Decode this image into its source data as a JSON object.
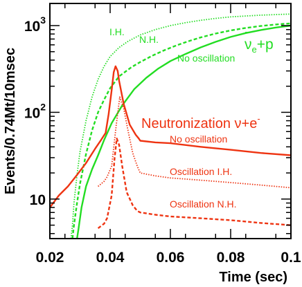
{
  "chart_data": {
    "type": "line",
    "xlabel": "Time (sec)",
    "ylabel": "Events/0.74Mt/10msec",
    "x_scale": "linear",
    "y_scale": "log",
    "xlim": [
      0.02,
      0.1
    ],
    "ylim": [
      3.5,
      1800
    ],
    "x_ticks": [
      0.02,
      0.04,
      0.06,
      0.08,
      0.1
    ],
    "x_tick_labels": [
      "0.02",
      "0.04",
      "0.06",
      "0.08",
      "0.1"
    ],
    "y_ticks": [
      10,
      100,
      1000
    ],
    "y_tick_labels": [
      {
        "base": "10",
        "exp": ""
      },
      {
        "base": "10",
        "exp": "2"
      },
      {
        "base": "10",
        "exp": "3"
      }
    ],
    "grid": false,
    "colors": {
      "antineutrino": "#22dd22",
      "neutronization": "#ee3311"
    },
    "group_labels": [
      {
        "id": "antineutrino",
        "text": "ν̄e+p",
        "base": "ν",
        "bar": "–",
        "sub": "e",
        "tail": "+p",
        "color": "#22dd22"
      },
      {
        "id": "neutronization",
        "text": "Neutronization ν+e⁻",
        "base": "Neutronization ν+e",
        "sup": "-",
        "color": "#ee3311"
      }
    ],
    "series": [
      {
        "id": "nuebar-no-osc",
        "group": "antineutrino",
        "label": "No oscillation",
        "style": "solid",
        "x": [
          0.029,
          0.0295,
          0.0305,
          0.032,
          0.034,
          0.036,
          0.038,
          0.0405,
          0.044,
          0.048,
          0.052,
          0.056,
          0.06,
          0.065,
          0.07,
          0.075,
          0.08,
          0.085,
          0.09,
          0.095,
          0.1
        ],
        "y": [
          3.5,
          4.5,
          8,
          14,
          22,
          32,
          48,
          75,
          120,
          185,
          250,
          320,
          390,
          470,
          560,
          650,
          740,
          820,
          890,
          950,
          1000
        ]
      },
      {
        "id": "nuebar-nh",
        "group": "antineutrino",
        "label": "N.H.",
        "style": "dashed",
        "x": [
          0.0275,
          0.028,
          0.029,
          0.03,
          0.032,
          0.034,
          0.036,
          0.038,
          0.04,
          0.043,
          0.047,
          0.05,
          0.054,
          0.058,
          0.062,
          0.066,
          0.07,
          0.075,
          0.08,
          0.085,
          0.09,
          0.095,
          0.1
        ],
        "y": [
          3.5,
          5,
          9,
          15,
          33,
          62,
          100,
          140,
          190,
          260,
          330,
          380,
          450,
          520,
          590,
          660,
          730,
          810,
          880,
          940,
          990,
          1030,
          1060
        ]
      },
      {
        "id": "nuebar-ih",
        "group": "antineutrino",
        "label": "I.H.",
        "style": "dotted",
        "x": [
          0.027,
          0.0275,
          0.028,
          0.029,
          0.03,
          0.032,
          0.034,
          0.036,
          0.038,
          0.04,
          0.043,
          0.046,
          0.05,
          0.055,
          0.06,
          0.065,
          0.07,
          0.075,
          0.08,
          0.09,
          0.1
        ],
        "y": [
          3.5,
          5,
          9,
          19,
          35,
          80,
          150,
          240,
          340,
          440,
          560,
          660,
          780,
          900,
          1000,
          1080,
          1150,
          1210,
          1260,
          1320,
          1360
        ]
      },
      {
        "id": "nue-no-osc",
        "group": "neutronization",
        "label": "No oscillation",
        "style": "solid",
        "x": [
          0.02,
          0.023,
          0.026,
          0.029,
          0.032,
          0.035,
          0.037,
          0.0385,
          0.0395,
          0.0405,
          0.0412,
          0.0418,
          0.0425,
          0.043,
          0.0445,
          0.0465,
          0.0485,
          0.0495,
          0.05,
          0.055,
          0.06,
          0.07,
          0.08,
          0.09,
          0.1
        ],
        "y": [
          8,
          11,
          14,
          19,
          26,
          38,
          48,
          58,
          95,
          180,
          290,
          340,
          300,
          230,
          125,
          72,
          55,
          50,
          47,
          45,
          44,
          40,
          37,
          34,
          32
        ]
      },
      {
        "id": "nue-ih",
        "group": "neutronization",
        "label": "Oscillation I.H.",
        "style": "dotted",
        "x": [
          0.036,
          0.038,
          0.039,
          0.0405,
          0.042,
          0.0432,
          0.0445,
          0.046,
          0.0475,
          0.049,
          0.05,
          0.055,
          0.06,
          0.07,
          0.08,
          0.09,
          0.1
        ],
        "y": [
          14,
          16,
          18,
          24,
          70,
          150,
          110,
          60,
          34,
          24,
          20,
          18.5,
          17.5,
          16.5,
          15.5,
          14.5,
          13.5
        ]
      },
      {
        "id": "nue-nh",
        "group": "neutronization",
        "label": "Oscillation N.H.",
        "style": "dashed",
        "x": [
          0.036,
          0.038,
          0.039,
          0.0405,
          0.0415,
          0.0422,
          0.043,
          0.044,
          0.0455,
          0.0475,
          0.049,
          0.05,
          0.055,
          0.06,
          0.07,
          0.08,
          0.09,
          0.1
        ],
        "y": [
          4.6,
          5.2,
          6,
          11,
          30,
          50,
          42,
          24,
          12,
          8.5,
          7.3,
          7,
          6.6,
          6.3,
          6,
          5.7,
          5.3,
          5
        ]
      }
    ]
  }
}
